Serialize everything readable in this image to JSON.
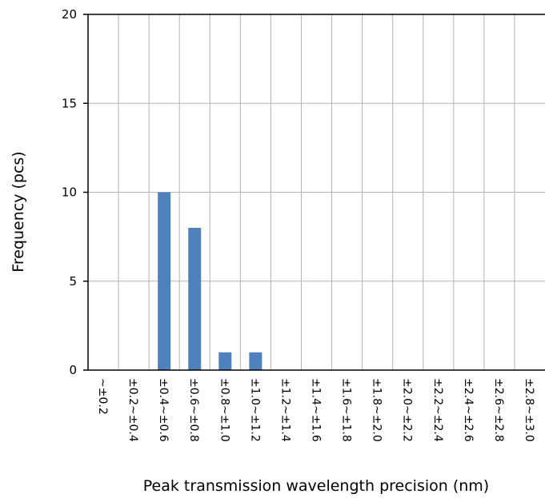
{
  "chart_data": {
    "type": "bar",
    "title": "",
    "xlabel": "Peak transmission wavelength precision (nm)",
    "ylabel": "Frequency (pcs)",
    "ylim": [
      0,
      20
    ],
    "yticks": [
      0,
      5,
      10,
      15,
      20
    ],
    "grid": true,
    "bar_color": "#4F81BD",
    "categories": [
      "~±0.2",
      "±0.2~±0.4",
      "±0.4~±0.6",
      "±0.6~±0.8",
      "±0.8~±1.0",
      "±1.0~±1.2",
      "±1.2~±1.4",
      "±1.4~±1.6",
      "±1.6~±1.8",
      "±1.8~±2.0",
      "±2.0~±2.2",
      "±2.2~±2.4",
      "±2.4~±2.6",
      "±2.6~±2.8",
      "±2.8~±3.0"
    ],
    "values": [
      0,
      0,
      10,
      8,
      1,
      1,
      0,
      0,
      0,
      0,
      0,
      0,
      0,
      0,
      0
    ]
  }
}
